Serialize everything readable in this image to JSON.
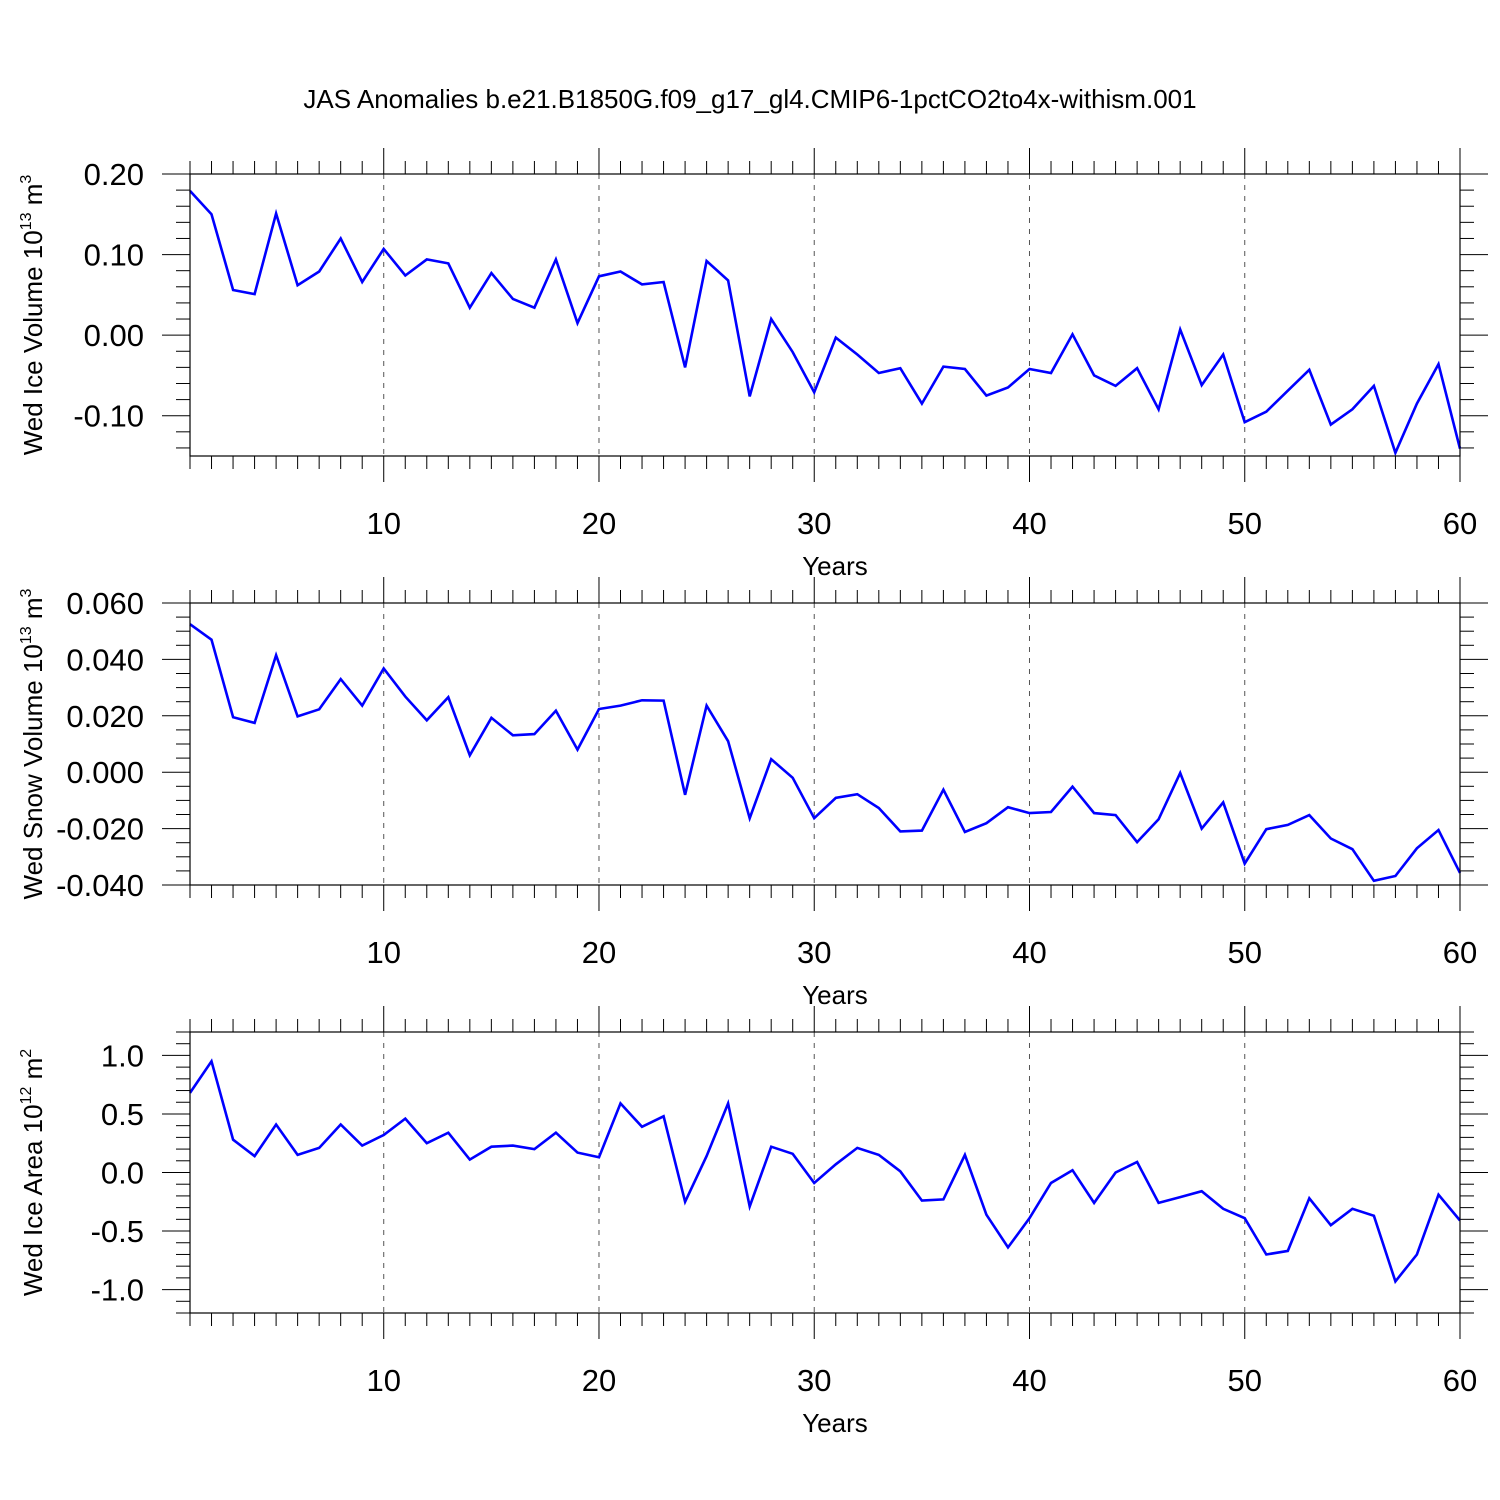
{
  "title": "JAS Anomalies b.e21.B1850G.f09_g17_gl4.CMIP6-1pctCO2to4x-withism.001",
  "colors": {
    "line": "#0000ff",
    "axis": "#000000",
    "grid": "#555555"
  },
  "chart_data": [
    {
      "type": "line",
      "ylabel": {
        "main": "Wed Ice Volume 10",
        "exp": "13",
        "unit": " m",
        "unit_exp": "3"
      },
      "xlabel": "Years",
      "xlim": [
        1,
        60
      ],
      "ylim": [
        -0.15,
        0.2
      ],
      "xticks": [
        10,
        20,
        30,
        40,
        50,
        60
      ],
      "xtick_labels": [
        "10",
        "20",
        "30",
        "40",
        "50",
        "60"
      ],
      "yticks": [
        0.2,
        0.1,
        0.0,
        -0.1
      ],
      "ytick_labels": [
        "0.20",
        "0.10",
        "0.00",
        "-0.10"
      ],
      "y_minor_step": 0.02,
      "x": [
        1,
        2,
        3,
        4,
        5,
        6,
        7,
        8,
        9,
        10,
        11,
        12,
        13,
        14,
        15,
        16,
        17,
        18,
        19,
        20,
        21,
        22,
        23,
        24,
        25,
        26,
        27,
        28,
        29,
        30,
        31,
        32,
        33,
        34,
        35,
        36,
        37,
        38,
        39,
        40,
        41,
        42,
        43,
        44,
        45,
        46,
        47,
        48,
        49,
        50,
        51,
        52,
        53,
        54,
        55,
        56,
        57,
        58,
        59,
        60
      ],
      "y": [
        0.179,
        0.15,
        0.056,
        0.051,
        0.151,
        0.062,
        0.079,
        0.12,
        0.066,
        0.107,
        0.074,
        0.094,
        0.089,
        0.034,
        0.077,
        0.045,
        0.034,
        0.094,
        0.015,
        0.073,
        0.079,
        0.063,
        0.066,
        -0.04,
        0.092,
        0.068,
        -0.076,
        0.02,
        -0.021,
        -0.071,
        -0.003,
        -0.024,
        -0.047,
        -0.041,
        -0.085,
        -0.039,
        -0.042,
        -0.075,
        -0.065,
        -0.042,
        -0.047,
        0.001,
        -0.05,
        -0.063,
        -0.041,
        -0.092,
        0.007,
        -0.062,
        -0.024,
        -0.108,
        -0.095,
        -0.069,
        -0.043,
        -0.111,
        -0.092,
        -0.063,
        -0.146,
        -0.085,
        -0.036,
        -0.141
      ]
    },
    {
      "type": "line",
      "ylabel": {
        "main": "Wed Snow Volume 10",
        "exp": "13",
        "unit": " m",
        "unit_exp": "3"
      },
      "xlabel": "Years",
      "xlim": [
        1,
        60
      ],
      "ylim": [
        -0.04,
        0.06
      ],
      "xticks": [
        10,
        20,
        30,
        40,
        50,
        60
      ],
      "xtick_labels": [
        "10",
        "20",
        "30",
        "40",
        "50",
        "60"
      ],
      "yticks": [
        0.06,
        0.04,
        0.02,
        0.0,
        -0.02,
        -0.04
      ],
      "ytick_labels": [
        "0.060",
        "0.040",
        "0.020",
        "0.000",
        "-0.020",
        "-0.040"
      ],
      "y_minor_step": 0.005,
      "x": [
        1,
        2,
        3,
        4,
        5,
        6,
        7,
        8,
        9,
        10,
        11,
        12,
        13,
        14,
        15,
        16,
        17,
        18,
        19,
        20,
        21,
        22,
        23,
        24,
        25,
        26,
        27,
        28,
        29,
        30,
        31,
        32,
        33,
        34,
        35,
        36,
        37,
        38,
        39,
        40,
        41,
        42,
        43,
        44,
        45,
        46,
        47,
        48,
        49,
        50,
        51,
        52,
        53,
        54,
        55,
        56,
        57,
        58,
        59,
        60
      ],
      "y": [
        0.0525,
        0.047,
        0.0195,
        0.0175,
        0.0415,
        0.0198,
        0.0223,
        0.033,
        0.0236,
        0.0368,
        0.0268,
        0.0184,
        0.0266,
        0.006,
        0.0193,
        0.0131,
        0.0135,
        0.0218,
        0.008,
        0.0224,
        0.0236,
        0.0255,
        0.0254,
        -0.008,
        0.0236,
        0.011,
        -0.0163,
        0.0046,
        -0.002,
        -0.0163,
        -0.0091,
        -0.0078,
        -0.0127,
        -0.021,
        -0.0207,
        -0.0062,
        -0.0212,
        -0.0181,
        -0.0124,
        -0.0145,
        -0.0141,
        -0.0051,
        -0.0145,
        -0.0152,
        -0.0248,
        -0.0167,
        -0.0003,
        -0.02,
        -0.0107,
        -0.0324,
        -0.0202,
        -0.0187,
        -0.0152,
        -0.0235,
        -0.0273,
        -0.0385,
        -0.0368,
        -0.027,
        -0.0205,
        -0.0357
      ]
    },
    {
      "type": "line",
      "ylabel": {
        "main": "Wed Ice Area 10",
        "exp": "12",
        "unit": " m",
        "unit_exp": "2"
      },
      "xlabel": "Years",
      "xlim": [
        1,
        60
      ],
      "ylim": [
        -1.2,
        1.2
      ],
      "xticks": [
        10,
        20,
        30,
        40,
        50,
        60
      ],
      "xtick_labels": [
        "10",
        "20",
        "30",
        "40",
        "50",
        "60"
      ],
      "yticks": [
        1.0,
        0.5,
        0.0,
        -0.5,
        -1.0
      ],
      "ytick_labels": [
        "1.0",
        "0.5",
        "0.0",
        "-0.5",
        "-1.0"
      ],
      "y_minor_step": 0.1,
      "x": [
        1,
        2,
        3,
        4,
        5,
        6,
        7,
        8,
        9,
        10,
        11,
        12,
        13,
        14,
        15,
        16,
        17,
        18,
        19,
        20,
        21,
        22,
        23,
        24,
        25,
        26,
        27,
        28,
        29,
        30,
        31,
        32,
        33,
        34,
        35,
        36,
        37,
        38,
        39,
        40,
        41,
        42,
        43,
        44,
        45,
        46,
        47,
        48,
        49,
        50,
        51,
        52,
        53,
        54,
        55,
        56,
        57,
        58,
        59,
        60
      ],
      "y": [
        0.68,
        0.95,
        0.28,
        0.14,
        0.41,
        0.15,
        0.21,
        0.41,
        0.23,
        0.32,
        0.46,
        0.25,
        0.34,
        0.11,
        0.22,
        0.23,
        0.2,
        0.34,
        0.17,
        0.13,
        0.59,
        0.39,
        0.48,
        -0.25,
        0.14,
        0.59,
        -0.29,
        0.22,
        0.16,
        -0.09,
        0.07,
        0.21,
        0.15,
        0.01,
        -0.24,
        -0.23,
        0.15,
        -0.36,
        -0.64,
        -0.39,
        -0.09,
        0.02,
        -0.26,
        0.0,
        0.09,
        -0.26,
        -0.21,
        -0.16,
        -0.31,
        -0.39,
        -0.7,
        -0.67,
        -0.22,
        -0.45,
        -0.31,
        -0.37,
        -0.93,
        -0.7,
        -0.19,
        -0.41
      ]
    }
  ]
}
